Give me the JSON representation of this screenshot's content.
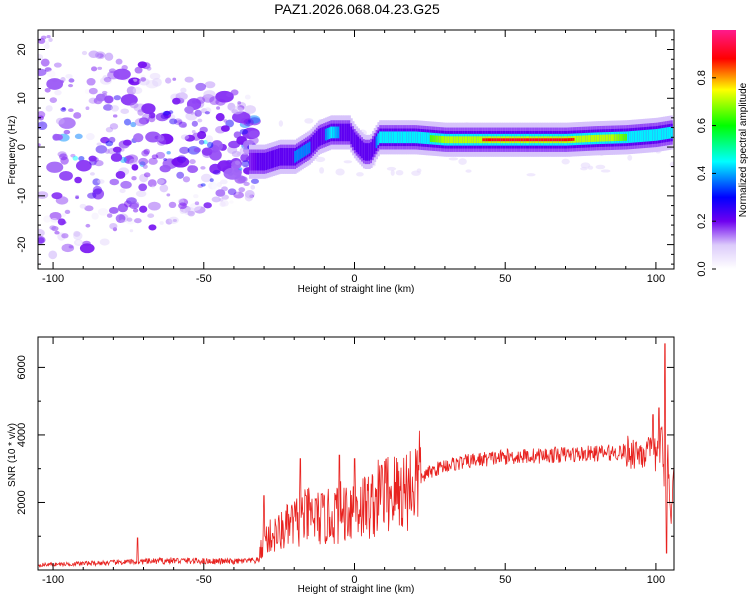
{
  "figure_title": "PAZ1.2026.068.04.23.G25",
  "chart_data": [
    {
      "type": "heatmap",
      "title": "PAZ1.2026.068.04.23.G25",
      "xlabel": "Height of straight line (km)",
      "ylabel": "Frequency (Hz)",
      "xlim": [
        -105,
        106
      ],
      "ylim": [
        -25,
        24
      ],
      "xticks": [
        -100,
        -50,
        0,
        50,
        100
      ],
      "yticks": [
        -20,
        -10,
        0,
        10,
        20
      ],
      "xtick_labels": [
        "-100",
        "-50",
        "0",
        "50",
        "100"
      ],
      "ytick_labels": [
        "-20",
        "-10",
        "0",
        "10",
        "20"
      ],
      "colorbar": {
        "label": "Normalized spectral amplitude",
        "range": [
          0,
          1
        ],
        "ticks": [
          0.0,
          0.2,
          0.4,
          0.6,
          0.8
        ],
        "tick_labels": [
          "0.0",
          "0.2",
          "0.4",
          "0.6",
          "0.8"
        ],
        "colormap": [
          "#ffffff",
          "#dccbfb",
          "#a266f7",
          "#6e00f0",
          "#0000ff",
          "#00ffff",
          "#00ff00",
          "#ffff00",
          "#ff0000",
          "#ff1a8c"
        ]
      },
      "ridge": {
        "x": [
          -35,
          -30,
          -25,
          -20,
          -15,
          -12,
          -8,
          -5,
          -2,
          0,
          3,
          5,
          8,
          12,
          20,
          30,
          40,
          50,
          60,
          70,
          80,
          90,
          100,
          105
        ],
        "y": [
          -3,
          -3,
          -2,
          -2,
          0,
          2,
          3,
          3,
          3,
          1,
          -1,
          -1,
          2,
          2,
          2,
          1.5,
          1.5,
          1.5,
          1.5,
          1.5,
          1.8,
          2,
          2.5,
          3
        ],
        "amplitude": [
          0.3,
          0.4,
          0.45,
          0.5,
          0.5,
          0.45,
          0.55,
          0.5,
          0.45,
          0.4,
          0.35,
          0.4,
          0.55,
          0.6,
          0.65,
          0.75,
          0.85,
          0.95,
          0.95,
          0.9,
          0.8,
          0.7,
          0.6,
          0.55
        ]
      }
    },
    {
      "type": "line",
      "xlabel": "Height of straight line (km)",
      "ylabel": "SNR (10 * v/v)",
      "xlim": [
        -105,
        106
      ],
      "ylim": [
        0,
        6900
      ],
      "xticks": [
        -100,
        -50,
        0,
        50,
        100
      ],
      "yticks": [
        2000,
        4000,
        6000
      ],
      "xtick_labels": [
        "-100",
        "-50",
        "0",
        "50",
        "100"
      ],
      "ytick_labels": [
        "2000",
        "4000",
        "6000"
      ],
      "line_color": "#e8221f",
      "trend": {
        "x": [
          -105,
          -80,
          -60,
          -40,
          -32,
          -30,
          -25,
          -20,
          -15,
          -10,
          -5,
          0,
          5,
          10,
          15,
          20,
          25,
          30,
          40,
          50,
          60,
          70,
          80,
          90,
          95,
          100,
          102,
          103,
          104,
          105,
          106
        ],
        "y": [
          150,
          220,
          280,
          250,
          280,
          900,
          1100,
          1400,
          1600,
          1500,
          1700,
          1900,
          1900,
          2300,
          2300,
          2600,
          2900,
          3100,
          3250,
          3350,
          3380,
          3420,
          3450,
          3500,
          3500,
          3400,
          3800,
          2200,
          3500,
          1400,
          3000
        ]
      },
      "spikes": [
        {
          "x": -72,
          "y": 950
        },
        {
          "x": -30,
          "y": 2200
        },
        {
          "x": -18,
          "y": 3300
        },
        {
          "x": -5,
          "y": 3400
        },
        {
          "x": 0,
          "y": 3300
        },
        {
          "x": 9,
          "y": 3100
        },
        {
          "x": 99,
          "y": 4600
        },
        {
          "x": 101,
          "y": 4800
        },
        {
          "x": 103,
          "y": 6700
        },
        {
          "x": 103.5,
          "y": 500
        }
      ]
    }
  ]
}
